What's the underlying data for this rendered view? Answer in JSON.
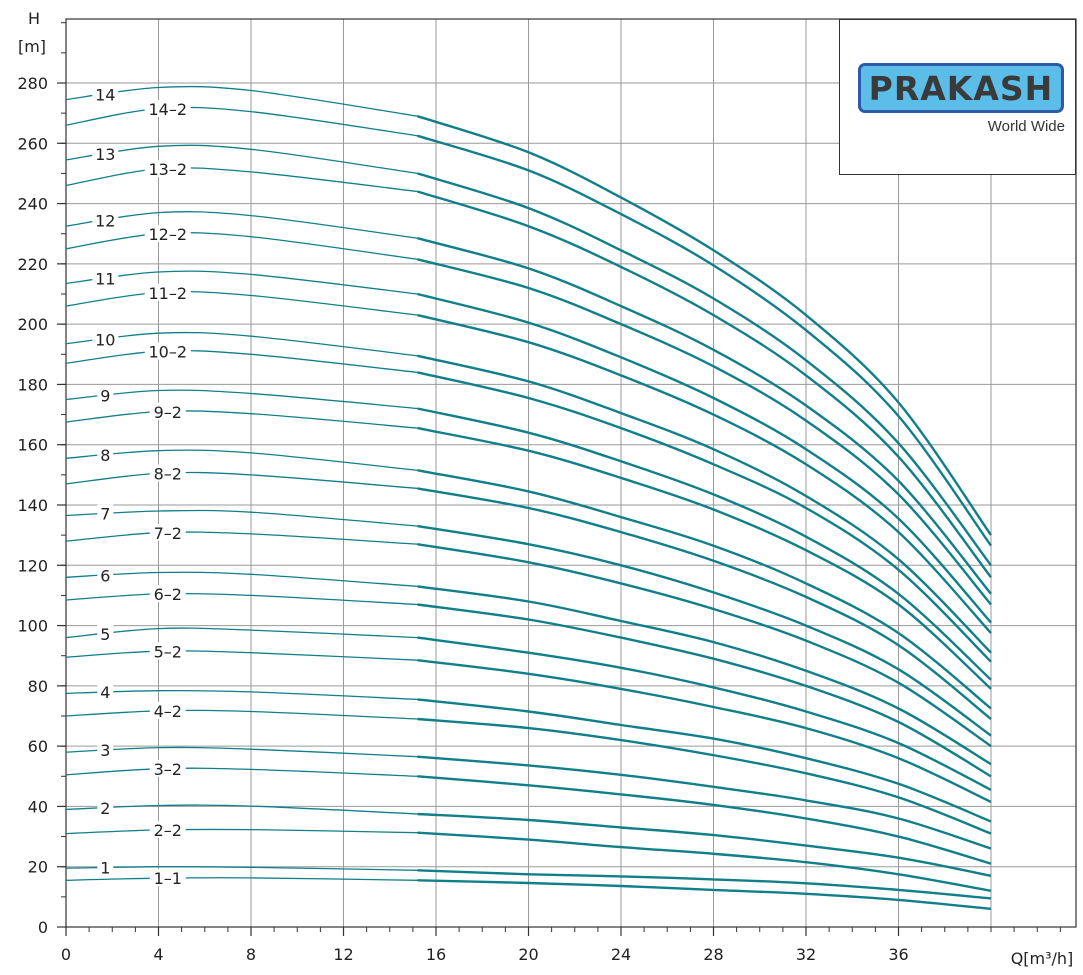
{
  "chart_data": {
    "type": "line",
    "xlabel": "Q[m³/h]",
    "ylabel_line1": "H",
    "ylabel_line2": "[m]",
    "xlim": [
      0,
      40
    ],
    "ylim": [
      0,
      290
    ],
    "x_ticks": [
      0,
      4,
      8,
      12,
      16,
      20,
      24,
      28,
      32,
      36
    ],
    "y_ticks": [
      0,
      20,
      40,
      60,
      80,
      100,
      120,
      140,
      160,
      180,
      200,
      220,
      240,
      260,
      280
    ],
    "grid": true,
    "line_color": "#107f8a",
    "operating_range_start_q": 15.2,
    "series": [
      {
        "name": "1",
        "label_x": 1.7,
        "points": [
          [
            0,
            19.5
          ],
          [
            4,
            20
          ],
          [
            8,
            19.8
          ],
          [
            15.2,
            18.8
          ],
          [
            20,
            17.5
          ],
          [
            24,
            16.8
          ],
          [
            28,
            15.8
          ],
          [
            32,
            14.5
          ],
          [
            36,
            12.3
          ],
          [
            40,
            9.5
          ]
        ]
      },
      {
        "name": "1-1",
        "label_x": 4.4,
        "points": [
          [
            0,
            15.5
          ],
          [
            4,
            16.2
          ],
          [
            8,
            16.3
          ],
          [
            15.2,
            15.5
          ],
          [
            20,
            14.6
          ],
          [
            24,
            13.6
          ],
          [
            28,
            12.3
          ],
          [
            32,
            11
          ],
          [
            36,
            9
          ],
          [
            40,
            6
          ]
        ]
      },
      {
        "name": "2",
        "label_x": 1.7,
        "points": [
          [
            0,
            39
          ],
          [
            4,
            40.3
          ],
          [
            8,
            40.1
          ],
          [
            15.2,
            37.5
          ],
          [
            20,
            35.5
          ],
          [
            24,
            33
          ],
          [
            28,
            30.5
          ],
          [
            32,
            27
          ],
          [
            36,
            23
          ],
          [
            40,
            17
          ]
        ]
      },
      {
        "name": "2-2",
        "label_x": 4.4,
        "points": [
          [
            0,
            31
          ],
          [
            4,
            32.2
          ],
          [
            8,
            32.3
          ],
          [
            15.2,
            31.3
          ],
          [
            20,
            29
          ],
          [
            24,
            26.5
          ],
          [
            28,
            24.3
          ],
          [
            32,
            21.5
          ],
          [
            36,
            17.5
          ],
          [
            40,
            12
          ]
        ]
      },
      {
        "name": "3",
        "label_x": 1.7,
        "points": [
          [
            0,
            58
          ],
          [
            4,
            59.5
          ],
          [
            8,
            59
          ],
          [
            15.2,
            56.5
          ],
          [
            20,
            53.6
          ],
          [
            24,
            50.5
          ],
          [
            28,
            46.5
          ],
          [
            32,
            42
          ],
          [
            36,
            36
          ],
          [
            40,
            26
          ]
        ]
      },
      {
        "name": "3-2",
        "label_x": 4.4,
        "points": [
          [
            0,
            50.5
          ],
          [
            4,
            52.5
          ],
          [
            8,
            52.3
          ],
          [
            15.2,
            50
          ],
          [
            20,
            47
          ],
          [
            24,
            44
          ],
          [
            28,
            40.5
          ],
          [
            32,
            36
          ],
          [
            36,
            30
          ],
          [
            40,
            21
          ]
        ]
      },
      {
        "name": "4",
        "label_x": 1.7,
        "points": [
          [
            0,
            77.5
          ],
          [
            4,
            78.4
          ],
          [
            8,
            78
          ],
          [
            15.2,
            75.5
          ],
          [
            20,
            71.5
          ],
          [
            24,
            67
          ],
          [
            28,
            62.5
          ],
          [
            32,
            56
          ],
          [
            36,
            47.5
          ],
          [
            40,
            35
          ]
        ]
      },
      {
        "name": "4-2",
        "label_x": 4.4,
        "points": [
          [
            0,
            70
          ],
          [
            4,
            71.7
          ],
          [
            8,
            71.5
          ],
          [
            15.2,
            69
          ],
          [
            20,
            66
          ],
          [
            24,
            62
          ],
          [
            28,
            57
          ],
          [
            32,
            51
          ],
          [
            36,
            43
          ],
          [
            40,
            31
          ]
        ]
      },
      {
        "name": "5",
        "label_x": 1.7,
        "points": [
          [
            0,
            96
          ],
          [
            4,
            99
          ],
          [
            8,
            98.5
          ],
          [
            15.2,
            96
          ],
          [
            20,
            91
          ],
          [
            24,
            86
          ],
          [
            28,
            79.5
          ],
          [
            32,
            71.5
          ],
          [
            36,
            61
          ],
          [
            40,
            45.5
          ]
        ]
      },
      {
        "name": "5-2",
        "label_x": 4.4,
        "points": [
          [
            0,
            89.5
          ],
          [
            4,
            91.5
          ],
          [
            8,
            91
          ],
          [
            15.2,
            88.5
          ],
          [
            20,
            84
          ],
          [
            24,
            79
          ],
          [
            28,
            73
          ],
          [
            32,
            66
          ],
          [
            36,
            56
          ],
          [
            40,
            41.5
          ]
        ]
      },
      {
        "name": "6",
        "label_x": 1.7,
        "points": [
          [
            0,
            116
          ],
          [
            4,
            117.6
          ],
          [
            8,
            117
          ],
          [
            15.2,
            113
          ],
          [
            20,
            108
          ],
          [
            24,
            101.5
          ],
          [
            28,
            94.5
          ],
          [
            32,
            85
          ],
          [
            36,
            72.5
          ],
          [
            40,
            54
          ]
        ]
      },
      {
        "name": "6-2",
        "label_x": 4.4,
        "points": [
          [
            0,
            108.5
          ],
          [
            4,
            110.5
          ],
          [
            8,
            110
          ],
          [
            15.2,
            107
          ],
          [
            20,
            102
          ],
          [
            24,
            96
          ],
          [
            28,
            89
          ],
          [
            32,
            80
          ],
          [
            36,
            68
          ],
          [
            40,
            50
          ]
        ]
      },
      {
        "name": "7",
        "label_x": 1.7,
        "points": [
          [
            0,
            136.5
          ],
          [
            4,
            138
          ],
          [
            8,
            137.6
          ],
          [
            15.2,
            133
          ],
          [
            20,
            127
          ],
          [
            24,
            120
          ],
          [
            28,
            111
          ],
          [
            32,
            100
          ],
          [
            36,
            85.5
          ],
          [
            40,
            63.5
          ]
        ]
      },
      {
        "name": "7-2",
        "label_x": 4.4,
        "points": [
          [
            0,
            128
          ],
          [
            4,
            130.8
          ],
          [
            8,
            130.4
          ],
          [
            15.2,
            127
          ],
          [
            20,
            121
          ],
          [
            24,
            114
          ],
          [
            28,
            105.5
          ],
          [
            32,
            95
          ],
          [
            36,
            81
          ],
          [
            40,
            60
          ]
        ]
      },
      {
        "name": "8",
        "label_x": 1.7,
        "points": [
          [
            0,
            155.5
          ],
          [
            4,
            158
          ],
          [
            8,
            157.3
          ],
          [
            15.2,
            151.5
          ],
          [
            20,
            144.5
          ],
          [
            24,
            136
          ],
          [
            28,
            126.5
          ],
          [
            32,
            114
          ],
          [
            36,
            97.5
          ],
          [
            40,
            72.5
          ]
        ]
      },
      {
        "name": "8-2",
        "label_x": 4.4,
        "points": [
          [
            0,
            147
          ],
          [
            4,
            150.5
          ],
          [
            8,
            150
          ],
          [
            15.2,
            145.5
          ],
          [
            20,
            139
          ],
          [
            24,
            131
          ],
          [
            28,
            121.5
          ],
          [
            32,
            109.5
          ],
          [
            36,
            93.5
          ],
          [
            40,
            69
          ]
        ]
      },
      {
        "name": "9",
        "label_x": 1.7,
        "points": [
          [
            0,
            175
          ],
          [
            4,
            178
          ],
          [
            8,
            177
          ],
          [
            15.2,
            172
          ],
          [
            20,
            164
          ],
          [
            24,
            154.5
          ],
          [
            28,
            143.5
          ],
          [
            32,
            129.5
          ],
          [
            36,
            110.5
          ],
          [
            40,
            82
          ]
        ]
      },
      {
        "name": "9-2",
        "label_x": 4.4,
        "points": [
          [
            0,
            167.5
          ],
          [
            4,
            171
          ],
          [
            8,
            170.3
          ],
          [
            15.2,
            165.5
          ],
          [
            20,
            158
          ],
          [
            24,
            149
          ],
          [
            28,
            138.5
          ],
          [
            32,
            125
          ],
          [
            36,
            107
          ],
          [
            40,
            79
          ]
        ]
      },
      {
        "name": "10",
        "label_x": 1.7,
        "points": [
          [
            0,
            193.5
          ],
          [
            4,
            197
          ],
          [
            8,
            196
          ],
          [
            15.2,
            189.5
          ],
          [
            20,
            181
          ],
          [
            24,
            170.5
          ],
          [
            28,
            158.5
          ],
          [
            32,
            143
          ],
          [
            36,
            122
          ],
          [
            40,
            91
          ]
        ]
      },
      {
        "name": "10-2",
        "label_x": 4.4,
        "points": [
          [
            0,
            187
          ],
          [
            4,
            191
          ],
          [
            8,
            190
          ],
          [
            15.2,
            184
          ],
          [
            20,
            175.5
          ],
          [
            24,
            165.5
          ],
          [
            28,
            153.5
          ],
          [
            32,
            139
          ],
          [
            36,
            118.5
          ],
          [
            40,
            88
          ]
        ]
      },
      {
        "name": "11",
        "label_x": 1.7,
        "points": [
          [
            0,
            213.5
          ],
          [
            4,
            217.3
          ],
          [
            8,
            216.5
          ],
          [
            15.2,
            210
          ],
          [
            20,
            200.5
          ],
          [
            24,
            189
          ],
          [
            28,
            175.5
          ],
          [
            32,
            158.5
          ],
          [
            36,
            135.5
          ],
          [
            40,
            101
          ]
        ]
      },
      {
        "name": "11-2",
        "label_x": 4.4,
        "points": [
          [
            0,
            206
          ],
          [
            4,
            210.5
          ],
          [
            8,
            209.5
          ],
          [
            15.2,
            203
          ],
          [
            20,
            194
          ],
          [
            24,
            183
          ],
          [
            28,
            170
          ],
          [
            32,
            153.5
          ],
          [
            36,
            131
          ],
          [
            40,
            97.5
          ]
        ]
      },
      {
        "name": "12",
        "label_x": 1.7,
        "points": [
          [
            0,
            232.5
          ],
          [
            4,
            237
          ],
          [
            8,
            236
          ],
          [
            15.2,
            228.5
          ],
          [
            20,
            218.5
          ],
          [
            24,
            206
          ],
          [
            28,
            191.5
          ],
          [
            32,
            173
          ],
          [
            36,
            148
          ],
          [
            40,
            110.5
          ]
        ]
      },
      {
        "name": "12-2",
        "label_x": 4.4,
        "points": [
          [
            0,
            225
          ],
          [
            4,
            230
          ],
          [
            8,
            229
          ],
          [
            15.2,
            221.5
          ],
          [
            20,
            212
          ],
          [
            24,
            200
          ],
          [
            28,
            186
          ],
          [
            32,
            168
          ],
          [
            36,
            143.5
          ],
          [
            40,
            107
          ]
        ]
      },
      {
        "name": "13",
        "label_x": 1.7,
        "points": [
          [
            0,
            254.5
          ],
          [
            4,
            259
          ],
          [
            8,
            258
          ],
          [
            15.2,
            250
          ],
          [
            20,
            238.5
          ],
          [
            24,
            224.5
          ],
          [
            28,
            208.5
          ],
          [
            32,
            188
          ],
          [
            36,
            160.5
          ],
          [
            40,
            120
          ]
        ]
      },
      {
        "name": "13-2",
        "label_x": 4.4,
        "points": [
          [
            0,
            246
          ],
          [
            4,
            251.5
          ],
          [
            8,
            250.5
          ],
          [
            15.2,
            244
          ],
          [
            20,
            232.5
          ],
          [
            24,
            219
          ],
          [
            28,
            203
          ],
          [
            32,
            183
          ],
          [
            36,
            156
          ],
          [
            40,
            116
          ]
        ]
      },
      {
        "name": "14",
        "label_x": 1.7,
        "points": [
          [
            0,
            274.5
          ],
          [
            4,
            278.5
          ],
          [
            8,
            277.5
          ],
          [
            15.2,
            269
          ],
          [
            20,
            257
          ],
          [
            24,
            242
          ],
          [
            28,
            224.5
          ],
          [
            32,
            203
          ],
          [
            36,
            174
          ],
          [
            40,
            130
          ]
        ]
      },
      {
        "name": "14-2",
        "label_x": 4.4,
        "points": [
          [
            0,
            266
          ],
          [
            4,
            271.5
          ],
          [
            8,
            270.5
          ],
          [
            15.2,
            262.5
          ],
          [
            20,
            251
          ],
          [
            24,
            236.5
          ],
          [
            28,
            219.5
          ],
          [
            32,
            198
          ],
          [
            36,
            169.5
          ],
          [
            40,
            126.5
          ]
        ]
      }
    ]
  },
  "logo": {
    "brand": "PRAKASH",
    "tagline": "World Wide",
    "badge_color": "#5cbde9",
    "border_color": "#2b5aa8"
  }
}
